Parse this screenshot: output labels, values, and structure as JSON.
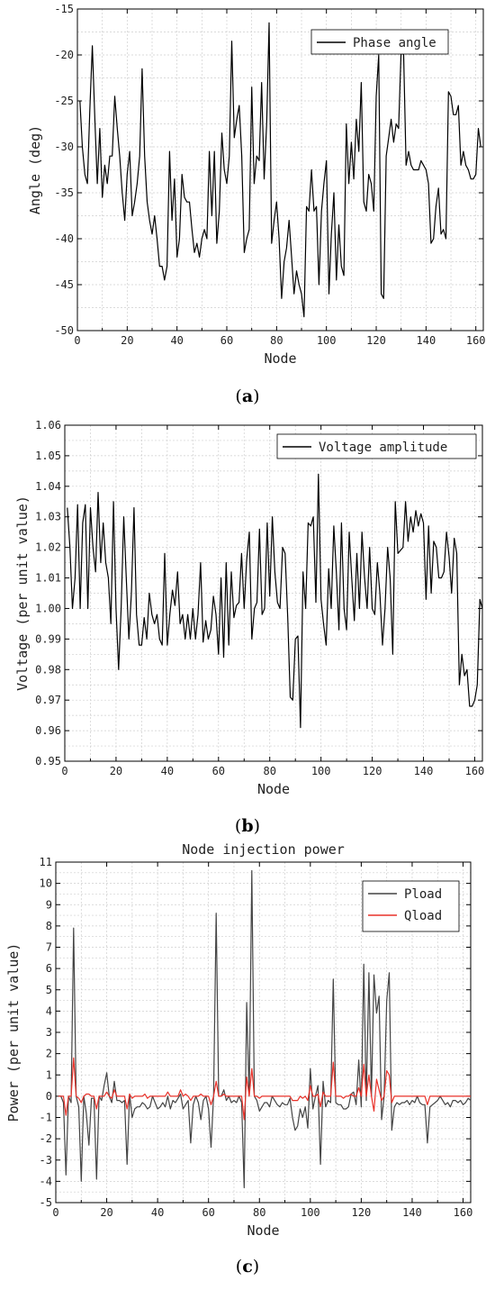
{
  "chart_data": [
    {
      "type": "line",
      "caption": "(a)",
      "caption_letter": "a",
      "title": "",
      "xlabel": "Node",
      "ylabel": "Angle (deg)",
      "xlim": [
        0,
        163
      ],
      "ylim": [
        -50,
        -15
      ],
      "xticks": [
        0,
        20,
        40,
        60,
        80,
        100,
        120,
        140,
        160
      ],
      "yticks": [
        -50,
        -45,
        -40,
        -35,
        -30,
        -25,
        -20,
        -15
      ],
      "grid": true,
      "legend": "top-right",
      "series": [
        {
          "name": "Phase angle",
          "color": "#000000",
          "values": [
            -25.0,
            -30.0,
            -33.0,
            -34.0,
            -26.0,
            -19.0,
            -27.0,
            -34.0,
            -28.0,
            -35.5,
            -32.0,
            -34.0,
            -31.0,
            -31.0,
            -24.5,
            -28.0,
            -31.0,
            -35.0,
            -38.0,
            -33.0,
            -30.5,
            -37.5,
            -36.0,
            -34.0,
            -31.0,
            -21.5,
            -31.0,
            -36.0,
            -38.0,
            -39.5,
            -37.5,
            -40.0,
            -43.0,
            -43.0,
            -44.5,
            -43.0,
            -30.5,
            -38.0,
            -33.5,
            -42.0,
            -40.0,
            -33.0,
            -35.5,
            -36.0,
            -36.0,
            -39.0,
            -41.5,
            -40.5,
            -42.0,
            -40.0,
            -39.0,
            -40.0,
            -30.5,
            -37.5,
            -30.5,
            -40.5,
            -37.0,
            -28.5,
            -32.5,
            -34.0,
            -31.0,
            -18.5,
            -29.0,
            -27.0,
            -25.5,
            -31.0,
            -41.5,
            -40.0,
            -39.0,
            -23.5,
            -34.0,
            -31.0,
            -31.5,
            -23.0,
            -33.5,
            -27.5,
            -16.5,
            -40.5,
            -38.0,
            -36.0,
            -40.0,
            -46.5,
            -42.5,
            -41.0,
            -38.0,
            -42.0,
            -46.0,
            -43.5,
            -45.0,
            -46.0,
            -48.5,
            -36.5,
            -37.0,
            -32.5,
            -37.0,
            -36.5,
            -45.0,
            -37.0,
            -34.0,
            -31.5,
            -46.0,
            -39.5,
            -35.0,
            -44.5,
            -38.5,
            -43.0,
            -44.0,
            -27.5,
            -34.0,
            -29.5,
            -33.5,
            -27.0,
            -30.5,
            -23.0,
            -36.0,
            -37.0,
            -33.0,
            -34.0,
            -37.0,
            -24.5,
            -20.0,
            -46.0,
            -46.5,
            -31.0,
            -29.0,
            -27.0,
            -29.5,
            -27.5,
            -28.0,
            -19.5,
            -20.0,
            -32.0,
            -30.5,
            -32.0,
            -32.5,
            -32.5,
            -32.5,
            -31.5,
            -32.0,
            -32.5,
            -34.0,
            -40.5,
            -40.0,
            -36.5,
            -34.5,
            -39.5,
            -39.0,
            -40.0,
            -24.0,
            -24.5,
            -26.5,
            -26.5,
            -25.5,
            -32.0,
            -30.5,
            -32.0,
            -32.5,
            -33.5,
            -33.5,
            -33.0,
            -28.0,
            -30.0
          ]
        }
      ]
    },
    {
      "type": "line",
      "caption": "(b)",
      "caption_letter": "b",
      "title": "",
      "xlabel": "Node",
      "ylabel": "Voltage (per unit value)",
      "xlim": [
        0,
        163
      ],
      "ylim": [
        0.95,
        1.06
      ],
      "xticks": [
        0,
        20,
        40,
        60,
        80,
        100,
        120,
        140,
        160
      ],
      "yticks": [
        0.95,
        0.96,
        0.97,
        0.98,
        0.99,
        1.0,
        1.01,
        1.02,
        1.03,
        1.04,
        1.05,
        1.06
      ],
      "ytick_labels": [
        "0.95",
        "0.96",
        "0.97",
        "0.98",
        "0.99",
        "1.00",
        "1.01",
        "1.02",
        "1.03",
        "1.04",
        "1.05",
        "1.06"
      ],
      "grid": true,
      "legend": "top-right",
      "series": [
        {
          "name": "Voltage amplitude",
          "color": "#000000",
          "values": [
            1.033,
            1.02,
            1.0,
            1.01,
            1.034,
            1.0,
            1.028,
            1.034,
            1.0,
            1.033,
            1.02,
            1.012,
            1.038,
            1.015,
            1.028,
            1.015,
            1.01,
            0.995,
            1.035,
            1.0,
            0.98,
            1.0,
            1.03,
            1.01,
            0.99,
            1.005,
            1.033,
            0.998,
            0.988,
            0.988,
            0.997,
            0.99,
            1.005,
            0.998,
            0.995,
            0.998,
            0.99,
            0.988,
            1.018,
            0.988,
            0.998,
            1.006,
            1.001,
            1.012,
            0.995,
            0.998,
            0.99,
            0.998,
            0.99,
            1.0,
            0.99,
            0.998,
            1.015,
            0.989,
            0.996,
            0.99,
            0.993,
            1.004,
            0.998,
            0.985,
            1.01,
            0.984,
            1.015,
            0.988,
            1.012,
            0.997,
            1.001,
            1.002,
            1.018,
            1.0,
            1.016,
            1.025,
            0.99,
            1.0,
            1.002,
            1.026,
            0.998,
            1.0,
            1.028,
            1.004,
            1.03,
            1.012,
            1.002,
            1.0,
            1.02,
            1.018,
            0.997,
            0.971,
            0.97,
            0.99,
            0.991,
            0.961,
            1.012,
            1.0,
            1.028,
            1.027,
            1.03,
            1.002,
            1.044,
            1.003,
            0.995,
            0.988,
            1.013,
            1.0,
            1.027,
            1.012,
            0.993,
            1.028,
            1.0,
            0.993,
            1.025,
            1.01,
            0.996,
            1.018,
            1.0,
            1.025,
            1.01,
            1.0,
            1.02,
            1.0,
            0.998,
            1.015,
            1.005,
            0.988,
            1.0,
            1.02,
            1.01,
            0.985,
            1.035,
            1.018,
            1.019,
            1.02,
            1.035,
            1.022,
            1.03,
            1.025,
            1.032,
            1.027,
            1.031,
            1.028,
            1.003,
            1.027,
            1.005,
            1.022,
            1.02,
            1.01,
            1.01,
            1.012,
            1.025,
            1.017,
            1.005,
            1.023,
            1.018,
            0.975,
            0.985,
            0.978,
            0.98,
            0.968,
            0.968,
            0.97,
            0.975,
            1.003,
            1.0
          ]
        }
      ]
    },
    {
      "type": "line",
      "caption": "(c)",
      "caption_letter": "c",
      "title": "Node injection power",
      "xlabel": "Node",
      "ylabel": "Power (per unit value)",
      "xlim": [
        0,
        163
      ],
      "ylim": [
        -5,
        11
      ],
      "xticks": [
        0,
        20,
        40,
        60,
        80,
        100,
        120,
        140,
        160
      ],
      "yticks": [
        -5,
        -4,
        -3,
        -2,
        -1,
        0,
        1,
        2,
        3,
        4,
        5,
        6,
        7,
        8,
        9,
        10,
        11
      ],
      "grid": true,
      "legend": "top-right",
      "series": [
        {
          "name": "Pload",
          "color": "#444444",
          "values": [
            0.0,
            0.0,
            -0.3,
            -3.7,
            0.0,
            -0.3,
            7.9,
            0.0,
            -0.5,
            -4.0,
            0.0,
            -0.8,
            -2.3,
            -0.1,
            -0.1,
            -3.9,
            0.0,
            -0.2,
            0.5,
            1.1,
            0.0,
            -0.3,
            0.7,
            -0.2,
            -0.2,
            -0.3,
            -0.2,
            -3.2,
            0.1,
            -1.0,
            -0.6,
            -0.5,
            -0.5,
            -0.3,
            -0.4,
            -0.6,
            -0.5,
            0.0,
            -0.3,
            -0.6,
            -0.5,
            -0.3,
            -0.5,
            0.0,
            -0.6,
            -0.2,
            -0.3,
            -0.1,
            0.1,
            -0.6,
            -0.4,
            -0.2,
            -2.2,
            -0.4,
            0.0,
            -0.3,
            -1.1,
            -0.2,
            0.0,
            -0.6,
            -2.4,
            0.0,
            8.6,
            0.0,
            0.0,
            0.3,
            -0.2,
            0.0,
            -0.3,
            -0.2,
            -0.3,
            0.0,
            -0.3,
            -4.3,
            4.4,
            0.0,
            10.6,
            0.0,
            -0.2,
            -0.7,
            -0.5,
            -0.3,
            -0.3,
            -0.5,
            0.0,
            -0.2,
            -0.4,
            -0.5,
            -0.3,
            -0.4,
            -0.4,
            -0.1,
            -1.0,
            -1.6,
            -1.4,
            -0.6,
            -1.0,
            -0.5,
            -1.5,
            1.3,
            -0.6,
            0.0,
            0.5,
            -3.2,
            0.7,
            -0.5,
            -0.2,
            -0.3,
            5.5,
            -0.3,
            -0.4,
            -0.4,
            -0.6,
            -0.6,
            -0.5,
            0.1,
            0.2,
            -0.4,
            1.7,
            -0.5,
            6.2,
            -0.2,
            5.8,
            0.0,
            5.7,
            3.9,
            4.7,
            -1.1,
            0.0,
            4.5,
            5.8,
            -1.6,
            -0.5,
            -0.3,
            -0.4,
            -0.3,
            -0.3,
            -0.2,
            -0.4,
            -0.2,
            -0.3,
            0.0,
            -0.3,
            -0.4,
            -0.4,
            -2.2,
            -0.5,
            -0.4,
            -0.3,
            -0.2,
            0.0,
            -0.2,
            -0.4,
            -0.3,
            -0.5,
            -0.2,
            -0.2,
            -0.3,
            -0.2,
            -0.4,
            -0.3,
            -0.1,
            -0.2
          ]
        },
        {
          "name": "Qload",
          "color": "#e8322a",
          "values": [
            0.0,
            0.0,
            0.0,
            -0.9,
            0.0,
            0.0,
            1.8,
            0.0,
            -0.1,
            -0.3,
            0.0,
            0.1,
            0.1,
            0.0,
            0.0,
            -0.6,
            0.0,
            0.0,
            0.0,
            0.2,
            0.0,
            -0.1,
            0.3,
            0.0,
            0.0,
            0.0,
            0.0,
            -0.6,
            0.1,
            -0.1,
            0.0,
            0.0,
            0.0,
            0.0,
            0.1,
            -0.1,
            0.0,
            0.0,
            0.0,
            0.0,
            0.0,
            0.0,
            0.0,
            0.2,
            0.0,
            0.0,
            0.0,
            0.0,
            0.3,
            0.0,
            0.1,
            0.0,
            -0.2,
            0.0,
            0.0,
            0.0,
            0.1,
            0.0,
            0.0,
            0.0,
            -0.4,
            0.0,
            0.7,
            0.0,
            0.0,
            0.1,
            0.0,
            0.0,
            0.0,
            0.0,
            0.0,
            0.0,
            0.0,
            -1.1,
            0.9,
            0.0,
            1.3,
            0.0,
            0.0,
            -0.1,
            0.0,
            0.0,
            0.0,
            0.0,
            0.0,
            0.0,
            0.0,
            0.0,
            0.0,
            0.0,
            0.0,
            0.0,
            -0.2,
            -0.2,
            -0.2,
            0.0,
            -0.1,
            0.0,
            -0.2,
            0.5,
            0.0,
            0.0,
            0.1,
            -0.5,
            0.2,
            0.0,
            0.0,
            0.0,
            1.6,
            0.0,
            0.0,
            0.0,
            -0.1,
            0.0,
            0.0,
            0.1,
            0.0,
            0.0,
            0.4,
            0.0,
            1.5,
            0.0,
            1.0,
            0.0,
            -0.7,
            0.8,
            0.3,
            -0.2,
            0.0,
            1.2,
            1.0,
            -0.3,
            0.0,
            0.0,
            0.0,
            0.0,
            0.0,
            0.0,
            0.0,
            0.0,
            0.0,
            0.0,
            0.0,
            0.0,
            0.0,
            -0.4,
            0.0,
            0.0,
            0.0,
            0.0,
            0.0,
            0.0,
            0.0,
            0.0,
            0.0,
            0.0,
            0.0,
            0.0,
            0.0,
            0.0,
            0.0,
            0.0,
            0.0
          ]
        }
      ]
    }
  ]
}
